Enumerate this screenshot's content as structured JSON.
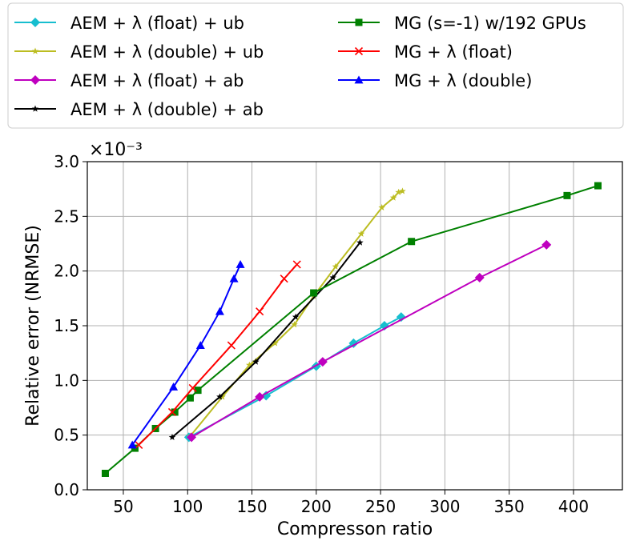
{
  "chart_data": {
    "type": "line",
    "title": "",
    "xlabel": "Compresson ratio",
    "ylabel": "Relative error (NRMSE)",
    "y_scale_label": "×10⁻³",
    "xlim": [
      22,
      438
    ],
    "ylim": [
      0.0,
      3.0
    ],
    "x_ticks": [
      50,
      100,
      150,
      200,
      250,
      300,
      350,
      400
    ],
    "y_ticks": [
      0.0,
      0.5,
      1.0,
      1.5,
      2.0,
      2.5,
      3.0
    ],
    "grid": true,
    "legend_position": "top, above plot, 2 columns",
    "series": [
      {
        "name": "AEM + λ (float) + ub",
        "color": "#17becf",
        "marker": "diamond",
        "x": [
          101,
          161,
          200,
          229,
          253,
          266
        ],
        "y": [
          0.48,
          0.86,
          1.13,
          1.34,
          1.5,
          1.58
        ]
      },
      {
        "name": "AEM + λ (double) + ub",
        "color": "#bcbd22",
        "marker": "star",
        "x": [
          102,
          127,
          148,
          168,
          183,
          198,
          215,
          235,
          251,
          260,
          264,
          267
        ],
        "y": [
          0.49,
          0.85,
          1.14,
          1.34,
          1.51,
          1.77,
          2.04,
          2.34,
          2.58,
          2.67,
          2.72,
          2.73
        ]
      },
      {
        "name": "AEM + λ (float) + ab",
        "color": "#bf00bf",
        "marker": "diamond",
        "x": [
          103,
          156,
          205,
          327,
          379
        ],
        "y": [
          0.48,
          0.85,
          1.17,
          1.94,
          2.24
        ]
      },
      {
        "name": "AEM + λ (double) + ab",
        "color": "#000000",
        "marker": "star",
        "x": [
          88,
          125,
          153,
          184,
          213,
          234
        ],
        "y": [
          0.48,
          0.85,
          1.17,
          1.58,
          1.94,
          2.26
        ]
      },
      {
        "name": "MG (s=-1) w/192 GPUs",
        "color": "#008000",
        "marker": "square",
        "x": [
          36,
          59,
          75,
          90,
          102,
          108,
          198,
          274,
          395,
          419
        ],
        "y": [
          0.15,
          0.38,
          0.56,
          0.71,
          0.84,
          0.91,
          1.8,
          2.27,
          2.69,
          2.78
        ]
      },
      {
        "name": "MG + λ (float)",
        "color": "#ff0000",
        "marker": "x",
        "x": [
          62,
          88,
          104,
          134,
          156,
          175,
          185
        ],
        "y": [
          0.41,
          0.71,
          0.93,
          1.32,
          1.63,
          1.93,
          2.06
        ]
      },
      {
        "name": "MG + λ (double)",
        "color": "#0000ff",
        "marker": "triangle",
        "x": [
          57,
          89,
          110,
          125,
          136,
          141
        ],
        "y": [
          0.41,
          0.94,
          1.32,
          1.63,
          1.93,
          2.06
        ]
      }
    ]
  }
}
